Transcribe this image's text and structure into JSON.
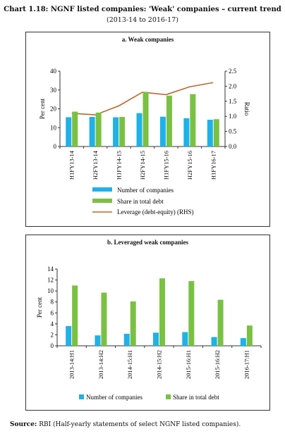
{
  "header": {
    "title": "Chart 1.18: NGNF listed companies: 'Weak' companies – current trend",
    "subtitle": "(2013-14 to 2016-17)"
  },
  "footer": {
    "source_label": "Source:",
    "source_text": "RBI (Half-yearly statements of select NGNF listed companies)."
  },
  "colors": {
    "number_of_companies": "#1fb1e8",
    "share_in_total_debt": "#7ac143",
    "leverage": "#c0662a",
    "axis": "#333333"
  },
  "chart_data": [
    {
      "type": "bar",
      "title": "a. Weak companies",
      "ylabel": "Per cent",
      "y2label": "Ratio",
      "ylim": [
        0,
        40
      ],
      "y2lim": [
        0,
        2.5
      ],
      "yticks": [
        0,
        10,
        20,
        30,
        40
      ],
      "y2ticks": [
        "0.0",
        "0.5",
        "1.0",
        "1.5",
        "2.0",
        "2.5"
      ],
      "categories": [
        "H1FY13-14",
        "H2FY13-14",
        "H1FY14-15",
        "H2FY14-15",
        "H1FY15-16",
        "H2FY15-16",
        "H1FY16-17"
      ],
      "series": [
        {
          "name": "Number of companies",
          "values": [
            15.5,
            15.7,
            15.5,
            17.7,
            15.8,
            15.0,
            14.2
          ]
        },
        {
          "name": "Share in total debt",
          "values": [
            18.5,
            18.0,
            15.7,
            29.0,
            27.0,
            27.8,
            14.5
          ]
        }
      ],
      "line_series": {
        "name": "Leverage (debt-equity) (RHS)",
        "axis": "right",
        "values": [
          1.1,
          1.05,
          1.35,
          1.8,
          1.72,
          1.98,
          2.12
        ]
      },
      "legend": "bottom",
      "grid": false
    },
    {
      "type": "bar",
      "title": "b. Leveraged weak companies",
      "ylabel": "Per cent",
      "ylim": [
        0,
        14
      ],
      "yticks": [
        0,
        2,
        4,
        6,
        8,
        10,
        12,
        14
      ],
      "categories": [
        "2013-14:H1",
        "2013-14:H2",
        "2014-15:H1",
        "2014-15:H2",
        "2015-16:H1",
        "2015-16:H2",
        "2016-17:H1"
      ],
      "series": [
        {
          "name": "Number of companies",
          "values": [
            3.6,
            1.9,
            2.2,
            2.4,
            2.5,
            1.6,
            1.4
          ]
        },
        {
          "name": "Share in total debt",
          "values": [
            11.0,
            9.7,
            8.1,
            12.3,
            11.8,
            8.4,
            3.7
          ]
        }
      ],
      "legend": "bottom",
      "grid": false
    }
  ]
}
